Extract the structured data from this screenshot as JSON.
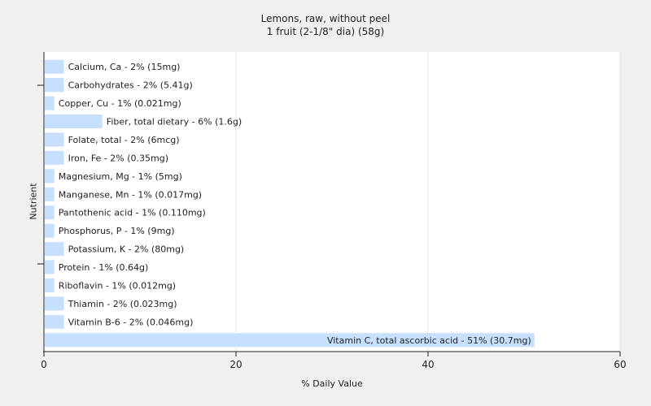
{
  "chart_data": {
    "type": "bar",
    "orientation": "horizontal",
    "title": "Lemons, raw, without peel",
    "subtitle": "1 fruit (2-1/8\" dia) (58g)",
    "xlabel": "% Daily Value",
    "ylabel": "Nutrient",
    "xlim": [
      0,
      60
    ],
    "xticks": [
      0,
      20,
      40,
      60
    ],
    "grid": "vertical",
    "bar_color": "#c7e0ff",
    "categories": [
      "Calcium, Ca - 2% (15mg)",
      "Carbohydrates - 2% (5.41g)",
      "Copper, Cu - 1% (0.021mg)",
      "Fiber, total dietary - 6% (1.6g)",
      "Folate, total - 2% (6mcg)",
      "Iron, Fe - 2% (0.35mg)",
      "Magnesium, Mg - 1% (5mg)",
      "Manganese, Mn - 1% (0.017mg)",
      "Pantothenic acid - 1% (0.110mg)",
      "Phosphorus, P - 1% (9mg)",
      "Potassium, K - 2% (80mg)",
      "Protein - 1% (0.64g)",
      "Riboflavin - 1% (0.012mg)",
      "Thiamin - 2% (0.023mg)",
      "Vitamin B-6 - 2% (0.046mg)",
      "Vitamin C, total ascorbic acid - 51% (30.7mg)"
    ],
    "values": [
      2,
      2,
      1,
      6,
      2,
      2,
      1,
      1,
      1,
      1,
      2,
      1,
      1,
      2,
      2,
      51
    ]
  }
}
